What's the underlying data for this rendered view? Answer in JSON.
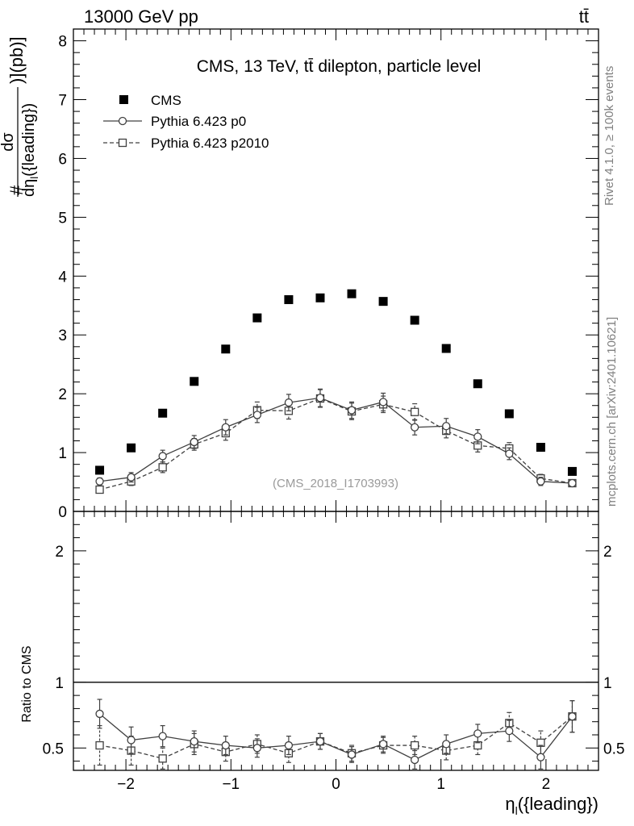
{
  "header": {
    "left": "13000 GeV pp",
    "right": "tt̄"
  },
  "side_labels": {
    "rivet": "Rivet 4.1.0, ≥ 100k events",
    "mcplots": "mcplots.cern.ch [arXiv:2401.10621]"
  },
  "chart_data": {
    "type": "scatter",
    "title": "CMS, 13 TeV, tt̄ dilepton, particle level",
    "watermark": "(CMS_2018_I1703993)",
    "ylabel_parts": {
      "hash": "#",
      "num": "dσ",
      "den": "dη",
      "den_sub": "l",
      "den_rest": "({leading})",
      "units": ")](pb)]"
    },
    "xlabel_parts": {
      "main": "η",
      "sub": "l",
      "rest": "({leading})"
    },
    "ratio_ylabel": "Ratio to CMS",
    "xlim": [
      -2.5,
      2.5
    ],
    "ylim": [
      0,
      8.2
    ],
    "ratio_ylim": [
      0.33,
      2.3
    ],
    "x_ticks": [
      -2,
      -1,
      0,
      1,
      2
    ],
    "x_tick_labels": [
      "−2",
      "−1",
      "0",
      "1",
      "2"
    ],
    "y_ticks": [
      0,
      1,
      2,
      3,
      4,
      5,
      6,
      7,
      8
    ],
    "y_tick_labels": [
      "0",
      "1",
      "2",
      "3",
      "4",
      "5",
      "6",
      "7",
      "8"
    ],
    "ratio_ticks": [
      0.5,
      1,
      2
    ],
    "ratio_tick_labels": [
      "0.5",
      "1",
      "2"
    ],
    "x": [
      -2.25,
      -1.95,
      -1.65,
      -1.35,
      -1.05,
      -0.75,
      -0.45,
      -0.15,
      0.15,
      0.45,
      0.75,
      1.05,
      1.35,
      1.65,
      1.95,
      2.25
    ],
    "series": [
      {
        "name": "CMS",
        "marker": "filled-square",
        "values": [
          0.7,
          1.08,
          1.67,
          2.21,
          2.76,
          3.29,
          3.6,
          3.63,
          3.7,
          3.57,
          3.25,
          2.77,
          2.17,
          1.66,
          1.09,
          0.68
        ],
        "errors": [
          0,
          0,
          0,
          0,
          0,
          0,
          0,
          0,
          0,
          0,
          0,
          0,
          0,
          0,
          0,
          0
        ]
      },
      {
        "name": "Pythia 6.423 p0",
        "marker": "open-circle",
        "line": "solid",
        "values": [
          0.51,
          0.58,
          0.94,
          1.18,
          1.43,
          1.64,
          1.85,
          1.93,
          1.72,
          1.86,
          1.43,
          1.45,
          1.27,
          0.98,
          0.51,
          0.48
        ],
        "errors": [
          0.06,
          0.08,
          0.1,
          0.11,
          0.13,
          0.13,
          0.14,
          0.15,
          0.14,
          0.15,
          0.13,
          0.13,
          0.12,
          0.1,
          0.07,
          0.06
        ],
        "ratio": [
          0.76,
          0.56,
          0.59,
          0.55,
          0.52,
          0.5,
          0.52,
          0.55,
          0.45,
          0.53,
          0.41,
          0.53,
          0.61,
          0.63,
          0.43,
          0.74
        ],
        "ratio_err": [
          0.11,
          0.1,
          0.08,
          0.08,
          0.07,
          0.07,
          0.07,
          0.06,
          0.06,
          0.06,
          0.07,
          0.07,
          0.07,
          0.08,
          0.09,
          0.12
        ]
      },
      {
        "name": "Pythia 6.423 p2010",
        "marker": "open-square",
        "line": "dashed",
        "values": [
          0.37,
          0.51,
          0.75,
          1.14,
          1.33,
          1.72,
          1.71,
          1.92,
          1.7,
          1.82,
          1.69,
          1.37,
          1.12,
          1.07,
          0.56,
          0.48
        ],
        "errors": [
          0.05,
          0.07,
          0.09,
          0.1,
          0.12,
          0.14,
          0.14,
          0.15,
          0.14,
          0.14,
          0.14,
          0.12,
          0.11,
          0.1,
          0.07,
          0.06
        ],
        "ratio": [
          0.52,
          0.48,
          0.42,
          0.53,
          0.47,
          0.53,
          0.46,
          0.55,
          0.46,
          0.52,
          0.52,
          0.48,
          0.52,
          0.69,
          0.54,
          0.74
        ],
        "ratio_err": [
          0.15,
          0.11,
          0.08,
          0.08,
          0.07,
          0.07,
          0.07,
          0.06,
          0.06,
          0.06,
          0.07,
          0.07,
          0.07,
          0.08,
          0.09,
          0.12
        ]
      }
    ]
  }
}
